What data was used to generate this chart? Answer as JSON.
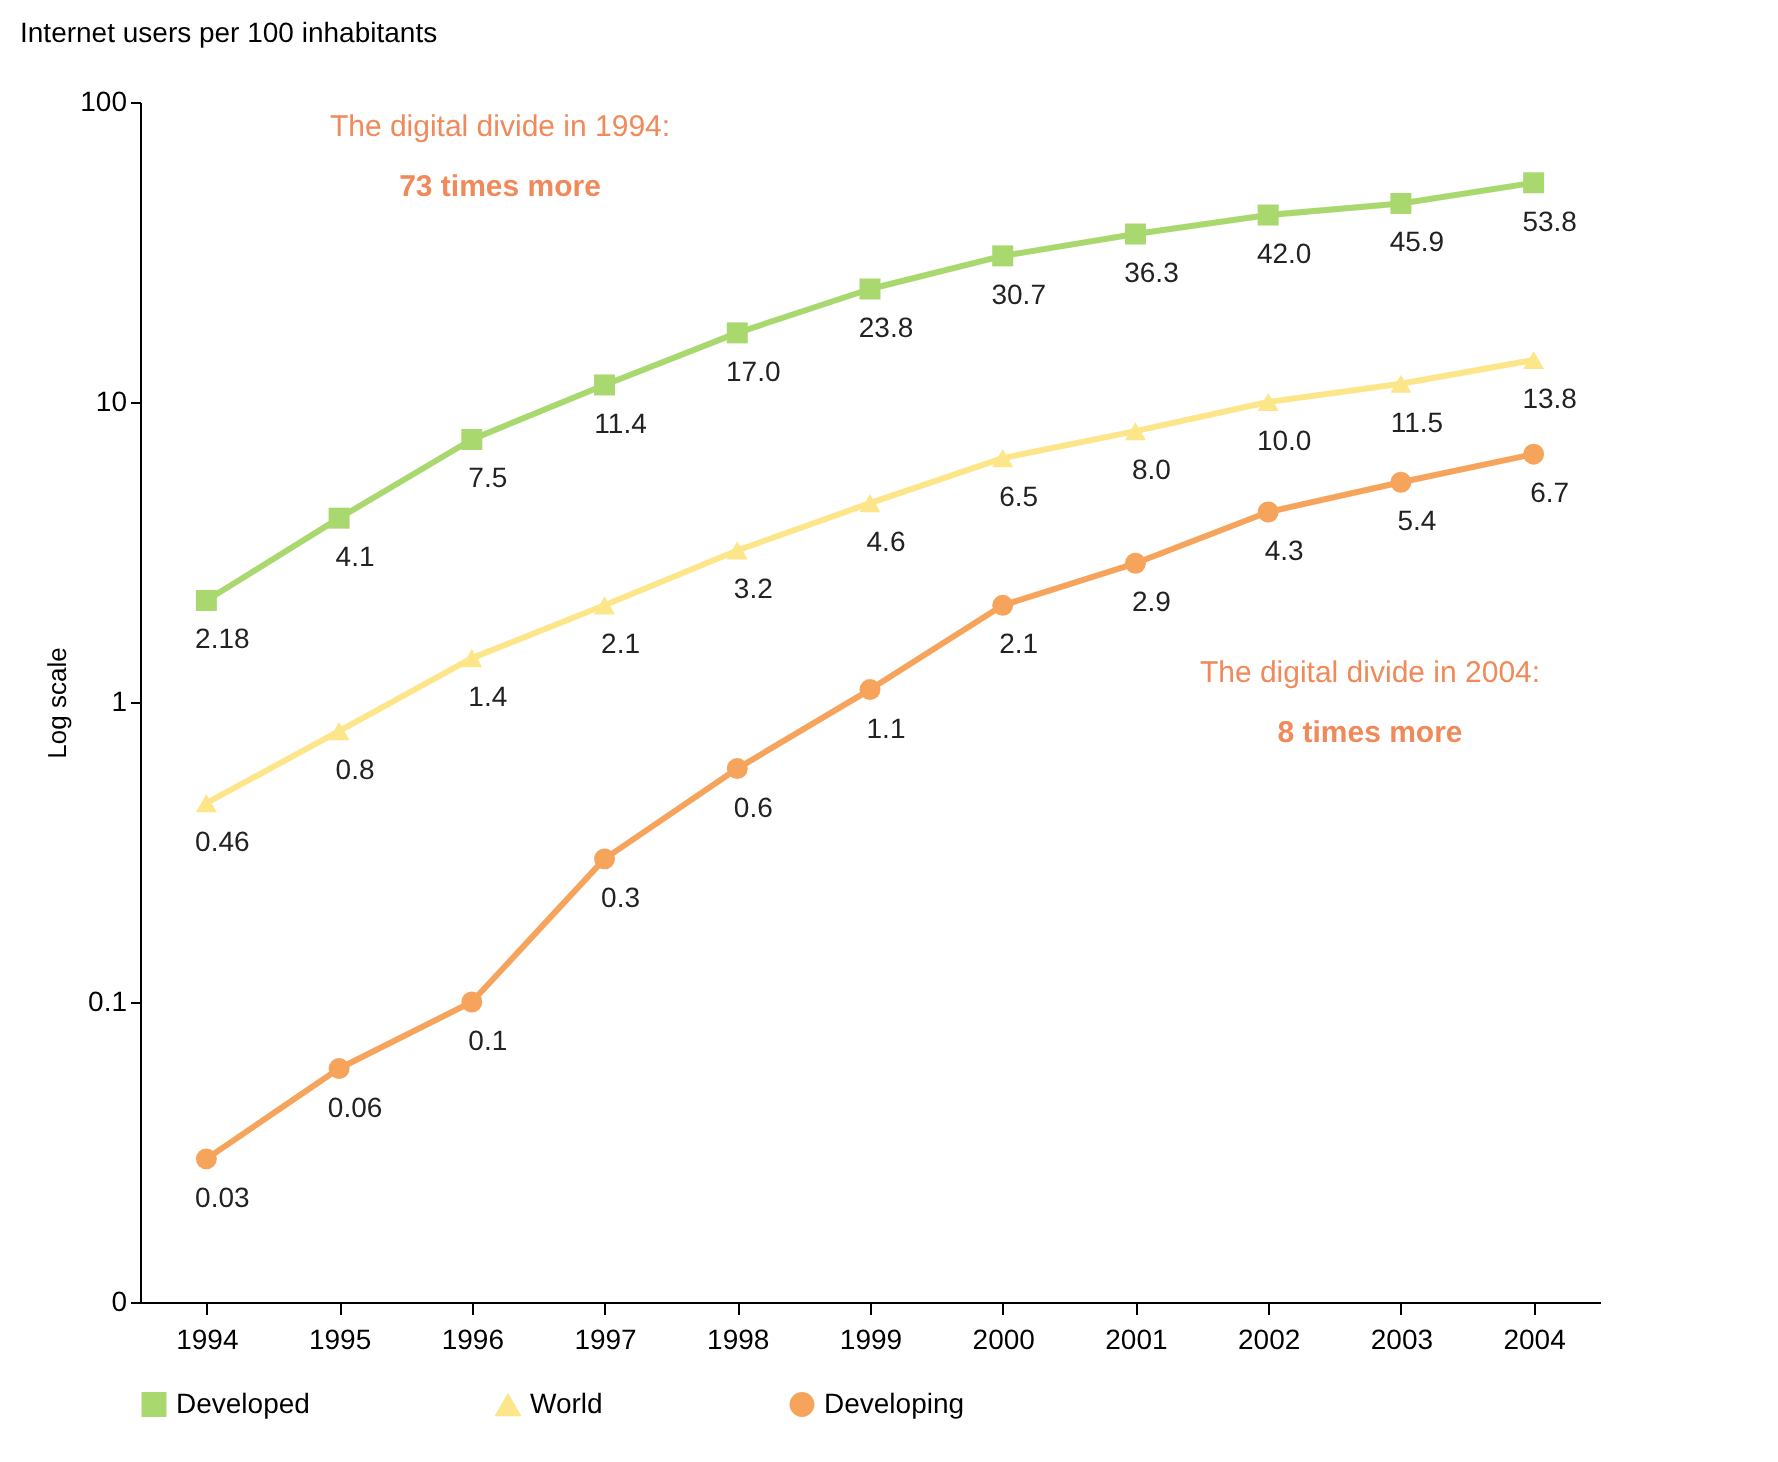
{
  "chart_data": {
    "type": "line",
    "title": "Internet users per 100 inhabitants",
    "ylabel": "Log scale",
    "categories": [
      "1994",
      "1995",
      "1996",
      "1997",
      "1998",
      "1999",
      "2000",
      "2001",
      "2002",
      "2003",
      "2004"
    ],
    "series": [
      {
        "name": "Developed",
        "color": "#a9d86e",
        "marker": "square",
        "values": [
          2.18,
          4.1,
          7.5,
          11.4,
          17.0,
          23.8,
          30.7,
          36.3,
          42.0,
          45.9,
          53.8
        ],
        "value_labels": [
          "2.18",
          "4.1",
          "7.5",
          "11.4",
          "17.0",
          "23.8",
          "30.7",
          "36.3",
          "42.0",
          "45.9",
          "53.8"
        ]
      },
      {
        "name": "World",
        "color": "#fde68a",
        "marker": "triangle",
        "values": [
          0.46,
          0.8,
          1.4,
          2.1,
          3.2,
          4.6,
          6.5,
          8.0,
          10.0,
          11.5,
          13.8
        ],
        "value_labels": [
          "0.46",
          "0.8",
          "1.4",
          "2.1",
          "3.2",
          "4.6",
          "6.5",
          "8.0",
          "10.0",
          "11.5",
          "13.8"
        ]
      },
      {
        "name": "Developing",
        "color": "#f6a45c",
        "marker": "circle",
        "values": [
          0.03,
          0.06,
          0.1,
          0.3,
          0.6,
          1.1,
          2.1,
          2.9,
          4.3,
          5.4,
          6.7
        ],
        "value_labels": [
          "0.03",
          "0.06",
          "0.1",
          "0.3",
          "0.6",
          "1.1",
          "2.1",
          "2.9",
          "4.3",
          "5.4",
          "6.7"
        ]
      }
    ],
    "log": "y",
    "ylim": [
      0.01,
      100
    ],
    "yticks": [
      {
        "value": 0.01,
        "label": "0"
      },
      0.1,
      1,
      10,
      100
    ],
    "legend": "bottom",
    "grid": false,
    "annotations": [
      "The digital divide in 1994:",
      "73 times more",
      "The digital divide in 2004:",
      "8 times more"
    ]
  }
}
